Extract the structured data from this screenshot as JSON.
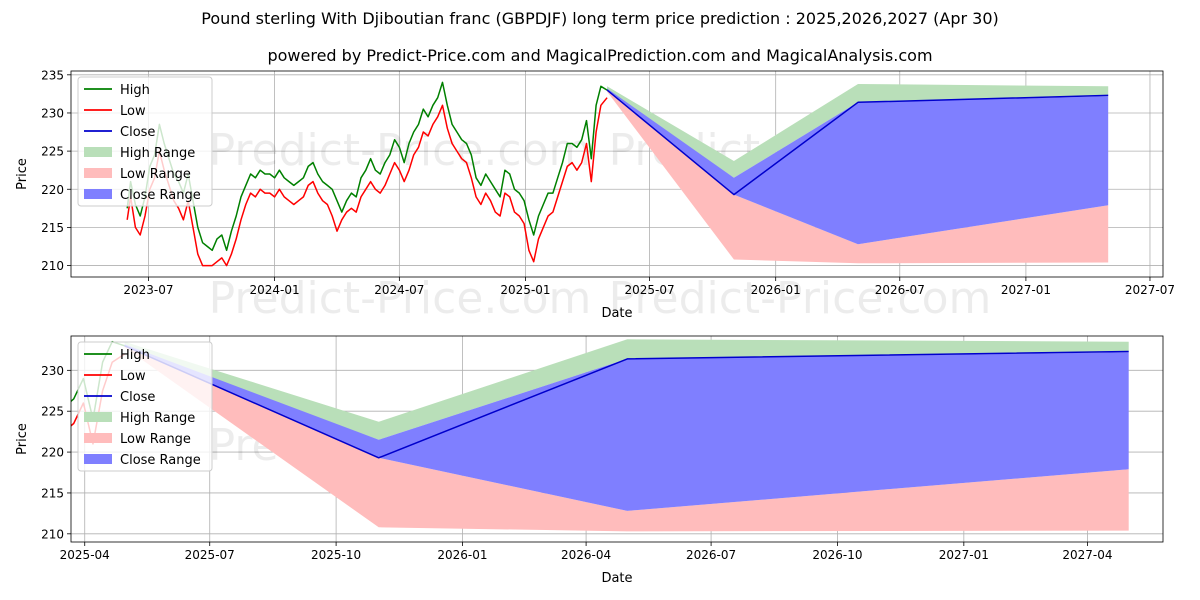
{
  "title": "Pound sterling With Djiboutian franc (GBPDJF) long term price prediction : 2025,2026,2027 (Apr 30)",
  "subtitle": "powered by Predict-Price.com and MagicalPrediction.com and MagicalAnalysis.com",
  "watermark": "Predict-Price.com",
  "colors": {
    "high": "#008000",
    "low": "#ff0000",
    "close": "#0000cc",
    "high_range": "#b9dfb9",
    "low_range": "#ffbcbc",
    "close_range": "#7f7fff"
  },
  "legend": [
    "High",
    "Low",
    "Close",
    "High Range",
    "Low Range",
    "Close Range"
  ],
  "chart_data": [
    {
      "type": "line",
      "name": "full-history-and-forecast",
      "xlabel": "Date",
      "ylabel": "Price",
      "xlim": [
        "2023-03-10",
        "2027-07-20"
      ],
      "ylim": [
        208.5,
        235.5
      ],
      "grid": true,
      "legend_position": "top-left",
      "x_ticks": [
        "2023-07-01",
        "2024-01-01",
        "2024-07-01",
        "2025-01-01",
        "2025-07-01",
        "2026-01-01",
        "2026-07-01",
        "2027-01-01",
        "2027-07-01"
      ],
      "x_tick_labels": [
        "2023-07",
        "2024-01",
        "2024-07",
        "2025-01",
        "2025-07",
        "2026-01",
        "2026-07",
        "2027-01",
        "2027-07"
      ],
      "y_ticks": [
        210,
        215,
        220,
        225,
        230,
        235
      ],
      "history": {
        "dates": [
          "2023-05-31",
          "2023-06-05",
          "2023-06-12",
          "2023-06-19",
          "2023-06-26",
          "2023-07-03",
          "2023-07-10",
          "2023-07-17",
          "2023-07-24",
          "2023-07-31",
          "2023-08-07",
          "2023-08-14",
          "2023-08-21",
          "2023-08-28",
          "2023-09-04",
          "2023-09-11",
          "2023-09-18",
          "2023-09-25",
          "2023-10-02",
          "2023-10-09",
          "2023-10-16",
          "2023-10-23",
          "2023-10-30",
          "2023-11-06",
          "2023-11-13",
          "2023-11-20",
          "2023-11-27",
          "2023-12-04",
          "2023-12-11",
          "2023-12-18",
          "2023-12-25",
          "2024-01-01",
          "2024-01-08",
          "2024-01-15",
          "2024-01-22",
          "2024-01-29",
          "2024-02-05",
          "2024-02-12",
          "2024-02-19",
          "2024-02-26",
          "2024-03-04",
          "2024-03-11",
          "2024-03-18",
          "2024-03-25",
          "2024-04-01",
          "2024-04-08",
          "2024-04-15",
          "2024-04-22",
          "2024-04-29",
          "2024-05-06",
          "2024-05-13",
          "2024-05-20",
          "2024-05-27",
          "2024-06-03",
          "2024-06-10",
          "2024-06-17",
          "2024-06-24",
          "2024-07-01",
          "2024-07-08",
          "2024-07-15",
          "2024-07-22",
          "2024-07-29",
          "2024-08-05",
          "2024-08-12",
          "2024-08-19",
          "2024-08-26",
          "2024-09-02",
          "2024-09-09",
          "2024-09-16",
          "2024-09-23",
          "2024-09-30",
          "2024-10-07",
          "2024-10-14",
          "2024-10-21",
          "2024-10-28",
          "2024-11-04",
          "2024-11-11",
          "2024-11-18",
          "2024-11-25",
          "2024-12-02",
          "2024-12-09",
          "2024-12-16",
          "2024-12-23",
          "2024-12-30",
          "2025-01-06",
          "2025-01-13",
          "2025-01-20",
          "2025-01-27",
          "2025-02-03",
          "2025-02-10",
          "2025-02-17",
          "2025-02-24",
          "2025-03-03",
          "2025-03-10",
          "2025-03-17",
          "2025-03-24",
          "2025-03-31",
          "2025-04-07",
          "2025-04-14",
          "2025-04-21",
          "2025-04-30"
        ],
        "high": [
          217.5,
          221.0,
          218.0,
          216.5,
          219.0,
          223.0,
          224.5,
          228.5,
          226.0,
          224.0,
          222.0,
          221.0,
          219.5,
          222.0,
          218.5,
          215.0,
          213.0,
          212.5,
          212.0,
          213.5,
          214.0,
          212.0,
          214.5,
          216.5,
          219.0,
          220.5,
          222.0,
          221.5,
          222.5,
          222.0,
          222.0,
          221.5,
          222.5,
          221.5,
          221.0,
          220.5,
          221.0,
          221.5,
          223.0,
          223.5,
          222.0,
          221.0,
          220.5,
          220.0,
          218.5,
          217.0,
          218.5,
          219.5,
          219.0,
          221.5,
          222.5,
          224.0,
          222.5,
          222.0,
          223.5,
          224.5,
          226.5,
          225.5,
          223.5,
          226.0,
          227.5,
          228.5,
          230.5,
          229.5,
          231.0,
          232.0,
          234.0,
          231.0,
          228.5,
          227.5,
          226.5,
          226.0,
          224.5,
          221.5,
          220.5,
          222.0,
          221.0,
          220.0,
          219.0,
          222.5,
          222.0,
          220.0,
          219.5,
          218.5,
          216.0,
          214.0,
          216.5,
          218.0,
          219.5,
          219.5,
          221.5,
          223.5,
          226.0,
          226.0,
          225.5,
          226.5,
          229.0,
          224.0,
          231.0,
          233.5,
          233.0
        ],
        "low": [
          216.0,
          219.0,
          215.0,
          214.0,
          216.5,
          220.0,
          221.5,
          225.0,
          222.5,
          220.5,
          218.5,
          217.5,
          216.0,
          218.5,
          215.0,
          211.5,
          210.0,
          210.0,
          210.0,
          210.5,
          211.0,
          210.0,
          211.5,
          213.5,
          216.0,
          218.0,
          219.5,
          219.0,
          220.0,
          219.5,
          219.5,
          219.0,
          220.0,
          219.0,
          218.5,
          218.0,
          218.5,
          219.0,
          220.5,
          221.0,
          219.5,
          218.5,
          218.0,
          216.5,
          214.5,
          216.0,
          217.0,
          217.5,
          217.0,
          219.0,
          220.0,
          221.0,
          220.0,
          219.5,
          220.5,
          222.0,
          223.5,
          222.5,
          221.0,
          222.5,
          224.5,
          225.5,
          227.5,
          227.0,
          228.5,
          229.5,
          231.0,
          228.0,
          226.0,
          225.0,
          224.0,
          223.5,
          221.5,
          219.0,
          218.0,
          219.5,
          218.5,
          217.0,
          216.5,
          219.5,
          219.0,
          217.0,
          216.5,
          215.5,
          212.0,
          210.5,
          213.5,
          215.0,
          216.5,
          217.0,
          219.0,
          221.0,
          223.0,
          223.5,
          222.5,
          223.5,
          226.0,
          221.0,
          227.5,
          231.0,
          232.0
        ],
        "close": [
          216.5,
          220.0,
          216.0,
          215.0,
          217.5,
          221.5,
          223.0,
          227.0,
          224.0,
          222.0,
          220.0,
          219.0,
          217.5,
          220.0,
          216.5,
          213.0,
          211.5,
          211.0,
          211.0,
          212.0,
          212.5,
          211.0,
          213.0,
          215.0,
          217.5,
          219.5,
          221.0,
          220.0,
          221.5,
          221.0,
          221.0,
          220.5,
          221.5,
          220.0,
          219.5,
          219.5,
          220.0,
          220.5,
          222.0,
          222.5,
          220.5,
          219.5,
          219.0,
          218.0,
          216.0,
          216.5,
          218.0,
          218.5,
          218.0,
          220.0,
          221.5,
          222.5,
          221.0,
          220.5,
          222.0,
          223.5,
          225.0,
          224.0,
          222.0,
          224.5,
          226.0,
          227.0,
          229.0,
          228.0,
          230.0,
          231.0,
          232.5,
          229.5,
          227.0,
          226.0,
          225.0,
          224.5,
          223.0,
          220.0,
          219.0,
          221.0,
          219.5,
          218.5,
          217.5,
          221.0,
          220.5,
          218.5,
          218.0,
          217.0,
          214.0,
          212.0,
          215.0,
          216.5,
          218.0,
          218.0,
          220.0,
          222.0,
          224.5,
          225.0,
          224.0,
          225.0,
          227.5,
          222.5,
          229.0,
          232.5,
          233.0
        ]
      },
      "forecast": {
        "dates": [
          "2025-04-30",
          "2025-11-01",
          "2026-05-01",
          "2027-05-01"
        ],
        "close": [
          233.0,
          219.3,
          231.4,
          232.3
        ],
        "high_range": {
          "upper": [
            233.5,
            223.7,
            233.8,
            233.5
          ],
          "lower": [
            232.8,
            221.5,
            231.4,
            232.2
          ]
        },
        "low_range": {
          "upper": [
            233.0,
            219.3,
            212.8,
            217.9
          ],
          "lower": [
            232.8,
            210.8,
            210.3,
            210.4
          ]
        },
        "close_range": {
          "upper": [
            233.2,
            221.5,
            231.4,
            232.2
          ],
          "lower": [
            233.0,
            219.3,
            212.8,
            217.9
          ]
        }
      }
    },
    {
      "type": "line",
      "name": "forecast-detail",
      "xlabel": "Date",
      "ylabel": "Price",
      "xlim": [
        "2025-03-22",
        "2027-05-26"
      ],
      "ylim": [
        209.0,
        234.2
      ],
      "grid": true,
      "legend_position": "top-left",
      "x_ticks": [
        "2025-04-01",
        "2025-07-01",
        "2025-10-01",
        "2026-01-01",
        "2026-04-01",
        "2026-07-01",
        "2026-10-01",
        "2027-01-01",
        "2027-04-01"
      ],
      "x_tick_labels": [
        "2025-04",
        "2025-07",
        "2025-10",
        "2026-01",
        "2026-04",
        "2026-07",
        "2026-10",
        "2027-01",
        "2027-04"
      ],
      "y_ticks": [
        210,
        215,
        220,
        225,
        230
      ]
    }
  ]
}
